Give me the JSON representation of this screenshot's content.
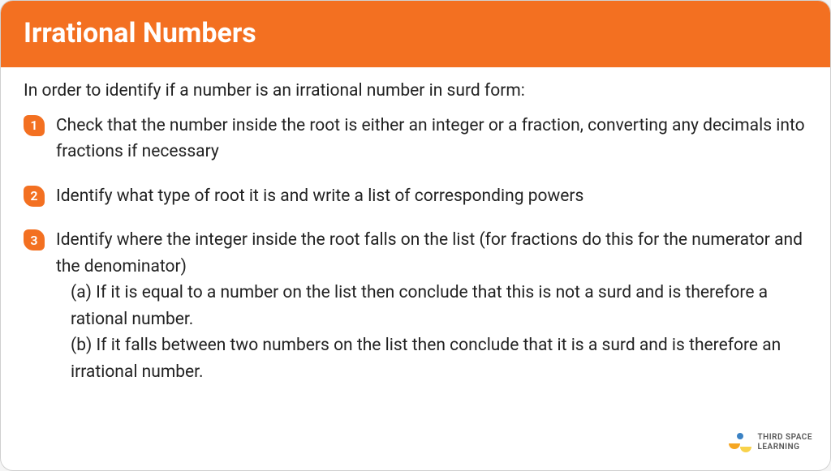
{
  "colors": {
    "header_bg": "#f37021",
    "header_text": "#ffffff",
    "body_text": "#222222",
    "badge_bg": "#f37021",
    "badge_text": "#ffffff",
    "card_bg": "#ffffff",
    "card_border": "#d0d0d0"
  },
  "title": "Irrational Numbers",
  "intro": "In order to identify if a number is an irrational number in surd form:",
  "steps": [
    {
      "num": "1",
      "text": "Check that the number inside the root is either an integer or a fraction, converting any decimals into fractions if necessary"
    },
    {
      "num": "2",
      "text": "Identify what type of root it is and write a list of corresponding powers"
    },
    {
      "num": "3",
      "text": "Identify where the integer inside the root falls on the list (for fractions do this for the numerator and the denominator)",
      "sub_a": "(a) If it is equal to a number on the list then conclude that this is not a surd and is therefore a rational number.",
      "sub_b": "(b) If it falls between two numbers on the list then conclude that it is a surd and is therefore an irrational number."
    }
  ],
  "logo": {
    "line1": "THIRD SPACE",
    "line2": "LEARNING"
  }
}
